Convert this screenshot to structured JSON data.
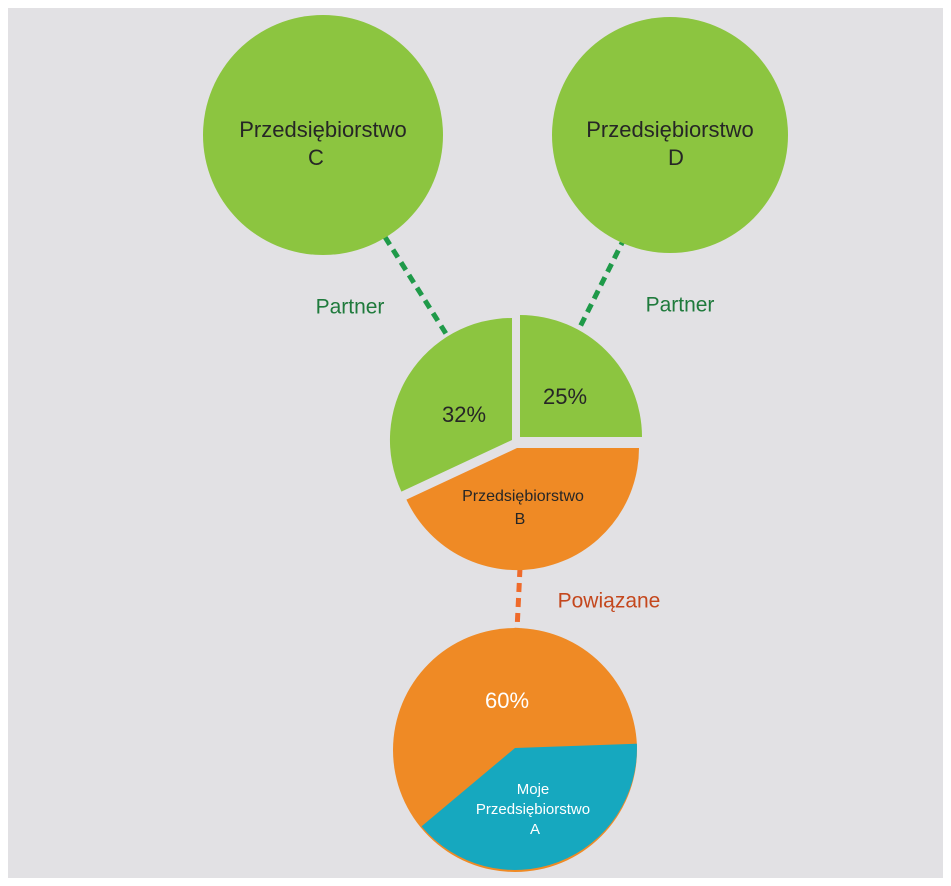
{
  "nodes": [
    {
      "label": [
        "Przedsiębiorstwo",
        "C"
      ]
    },
    {
      "label": [
        "Przedsiębiorstwo",
        "D"
      ]
    },
    {
      "label": [
        "Przedsiębiorstwo",
        "B"
      ],
      "shares": [
        "32%",
        "25%"
      ]
    },
    {
      "label": [
        "Moje",
        "Przedsiębiorstwo",
        "A"
      ],
      "shares": [
        "60%"
      ]
    }
  ],
  "edges": [
    {
      "label": "Partner"
    },
    {
      "label": "Partner"
    },
    {
      "label": "Powiązane"
    }
  ]
}
